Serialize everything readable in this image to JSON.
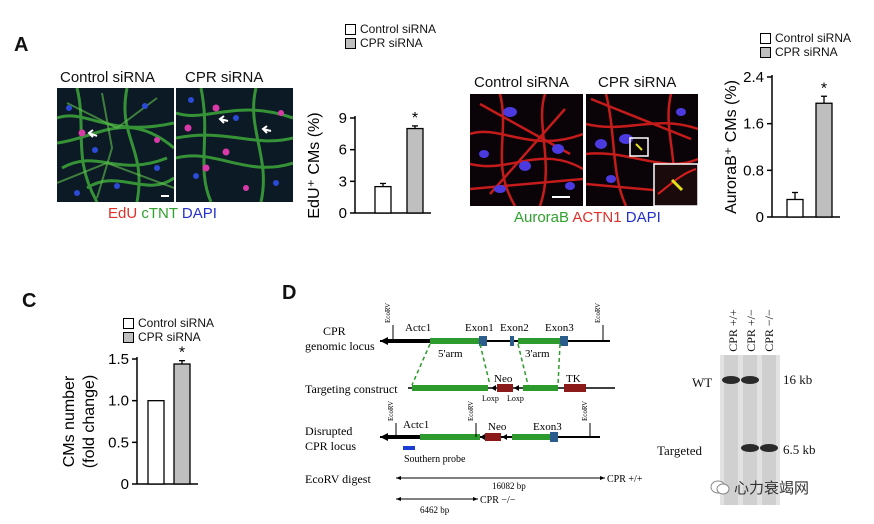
{
  "panels": {
    "A": {
      "letter": "A",
      "micro1": {
        "left_label": "Control siRNA",
        "right_label": "CPR siRNA",
        "stain": {
          "edu": "EdU",
          "ctnt": "cTNT",
          "dapi": "DAPI"
        }
      },
      "micro2": {
        "left_label": "Control siRNA",
        "right_label": "CPR siRNA",
        "stain": {
          "aurora": "AuroraB",
          "actn": "ACTN1",
          "dapi": "DAPI"
        }
      }
    },
    "C": {
      "letter": "C"
    },
    "D": {
      "letter": "D",
      "map": {
        "rows": {
          "genomic": [
            "CPR",
            "genomic locus"
          ],
          "construct": "Targeting construct",
          "disrupted": [
            "Disrupted",
            "CPR locus"
          ],
          "digest": "EcoRV digest"
        },
        "labels": {
          "ecorv": "EcoRV",
          "actc1": "Actc1",
          "exon1": "Exon1",
          "exon2": "Exon2",
          "exon3": "Exon3",
          "arm5": "5'arm",
          "arm3": "3'arm",
          "neo": "Neo",
          "tk": "TK",
          "loxp": "Loxp",
          "probe": "Southern probe",
          "size_wt": "16082 bp",
          "size_ko": "6462 bp",
          "cpr_wt": "CPR +/+",
          "cpr_ko": "CPR −/−"
        }
      },
      "blot": {
        "lanes": [
          "CPR +/+",
          "CPR +/−",
          "CPR −/−"
        ],
        "band_wt": "WT",
        "band_targeted": "Targeted",
        "size_wt": "16 kb",
        "size_targeted": "6.5 kb",
        "watermark": "心力衰竭网"
      }
    }
  },
  "chart_data": [
    {
      "id": "edu",
      "type": "bar",
      "ylabel": "EdU⁺ CMs (%)",
      "ylim": [
        0,
        9
      ],
      "yticks": [
        "0",
        "3",
        "6",
        "9"
      ],
      "series": [
        {
          "name": "Control siRNA",
          "value": 2.5,
          "error": 0.3,
          "color": "#ffffff"
        },
        {
          "name": "CPR siRNA",
          "value": 8.0,
          "error": 0.25,
          "color": "#bfbfbf"
        }
      ],
      "annotation": "*",
      "legend": "top"
    },
    {
      "id": "aurora",
      "type": "bar",
      "ylabel": "AuroraB⁺ CMs (%)",
      "ylim": [
        0,
        2.4
      ],
      "yticks": [
        "0",
        "0.8",
        "1.6",
        "2.4"
      ],
      "series": [
        {
          "name": "Control siRNA",
          "value": 0.3,
          "error": 0.12,
          "color": "#ffffff"
        },
        {
          "name": "CPR siRNA",
          "value": 1.95,
          "error": 0.12,
          "color": "#bfbfbf"
        }
      ],
      "annotation": "*",
      "legend": "top"
    },
    {
      "id": "cms",
      "type": "bar",
      "ylabel": [
        "CMs number",
        "(fold change)"
      ],
      "ylim": [
        0,
        1.5
      ],
      "yticks": [
        "0",
        "0.5",
        "1.0",
        "1.5"
      ],
      "series": [
        {
          "name": "Control siRNA",
          "value": 1.0,
          "error": 0.0,
          "color": "#ffffff"
        },
        {
          "name": "CPR siRNA",
          "value": 1.44,
          "error": 0.04,
          "color": "#bfbfbf"
        }
      ],
      "annotation": "*",
      "legend": "top"
    }
  ]
}
